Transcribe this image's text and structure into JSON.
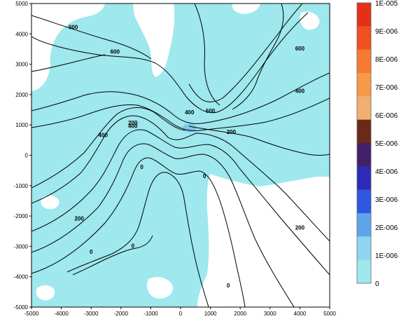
{
  "chart_data": {
    "type": "heatmap",
    "title": "",
    "xlabel": "",
    "ylabel": "",
    "xlim": [
      -5000,
      5000
    ],
    "ylim": [
      -5000,
      5000
    ],
    "x_ticks": [
      -5000,
      -4000,
      -3000,
      -2000,
      -1000,
      0,
      1000,
      2000,
      3000,
      4000,
      5000
    ],
    "y_ticks": [
      -5000,
      -4000,
      -3000,
      -2000,
      -1000,
      0,
      1000,
      2000,
      3000,
      4000,
      5000
    ],
    "x_tick_labels": [
      "-5000",
      "-4000",
      "-3000",
      "-2000",
      "-1000",
      "0",
      "1000",
      "2000",
      "3000",
      "4000",
      "5000"
    ],
    "y_tick_labels": [
      "-5000",
      "-4000",
      "-3000",
      "-2000",
      "-1000",
      "0",
      "1000",
      "2000",
      "3000",
      "4000",
      "5000"
    ],
    "grid": false,
    "colorbar": {
      "min": 0,
      "max": 1e-05,
      "placement": "right",
      "labels": [
        "1E-005",
        "9E-006",
        "8E-006",
        "7E-006",
        "6E-006",
        "5E-006",
        "4E-006",
        "3E-006",
        "2E-006",
        "1E-006",
        "0"
      ],
      "colors": [
        "#e53018",
        "#f05020",
        "#f47a30",
        "#f59a48",
        "#f2b070",
        "#6b2a18",
        "#43206a",
        "#2e2ab8",
        "#2f58e0",
        "#5ea4ea",
        "#8fd4f0",
        "#9ee8ee"
      ]
    },
    "field": {
      "background_color": "#9ee8ee",
      "zero_region_color": "#ffffff",
      "peak_color": "#7ec6ea",
      "peak_location": [
        300,
        900
      ]
    },
    "contours": {
      "line_color": "#000000",
      "labels": [
        {
          "text": "600",
          "x": -3600,
          "y": 4200
        },
        {
          "text": "600",
          "x": -2200,
          "y": 3400
        },
        {
          "text": "600",
          "x": 4000,
          "y": 3500
        },
        {
          "text": "600",
          "x": 1000,
          "y": 1450
        },
        {
          "text": "400",
          "x": -1600,
          "y": 950
        },
        {
          "text": "400",
          "x": -2600,
          "y": 650
        },
        {
          "text": "400",
          "x": 4000,
          "y": 2100
        },
        {
          "text": "400",
          "x": 300,
          "y": 1400
        },
        {
          "text": "200",
          "x": -1600,
          "y": 1050
        },
        {
          "text": "200",
          "x": 1700,
          "y": 750
        },
        {
          "text": "200",
          "x": -3400,
          "y": -2100
        },
        {
          "text": "200",
          "x": 4000,
          "y": -2400
        },
        {
          "text": "0",
          "x": -1300,
          "y": -400
        },
        {
          "text": "0",
          "x": 800,
          "y": -700
        },
        {
          "text": "0",
          "x": -3000,
          "y": -3200
        },
        {
          "text": "0",
          "x": -1600,
          "y": -3000
        },
        {
          "text": "0",
          "x": 1600,
          "y": -4300
        }
      ]
    }
  }
}
